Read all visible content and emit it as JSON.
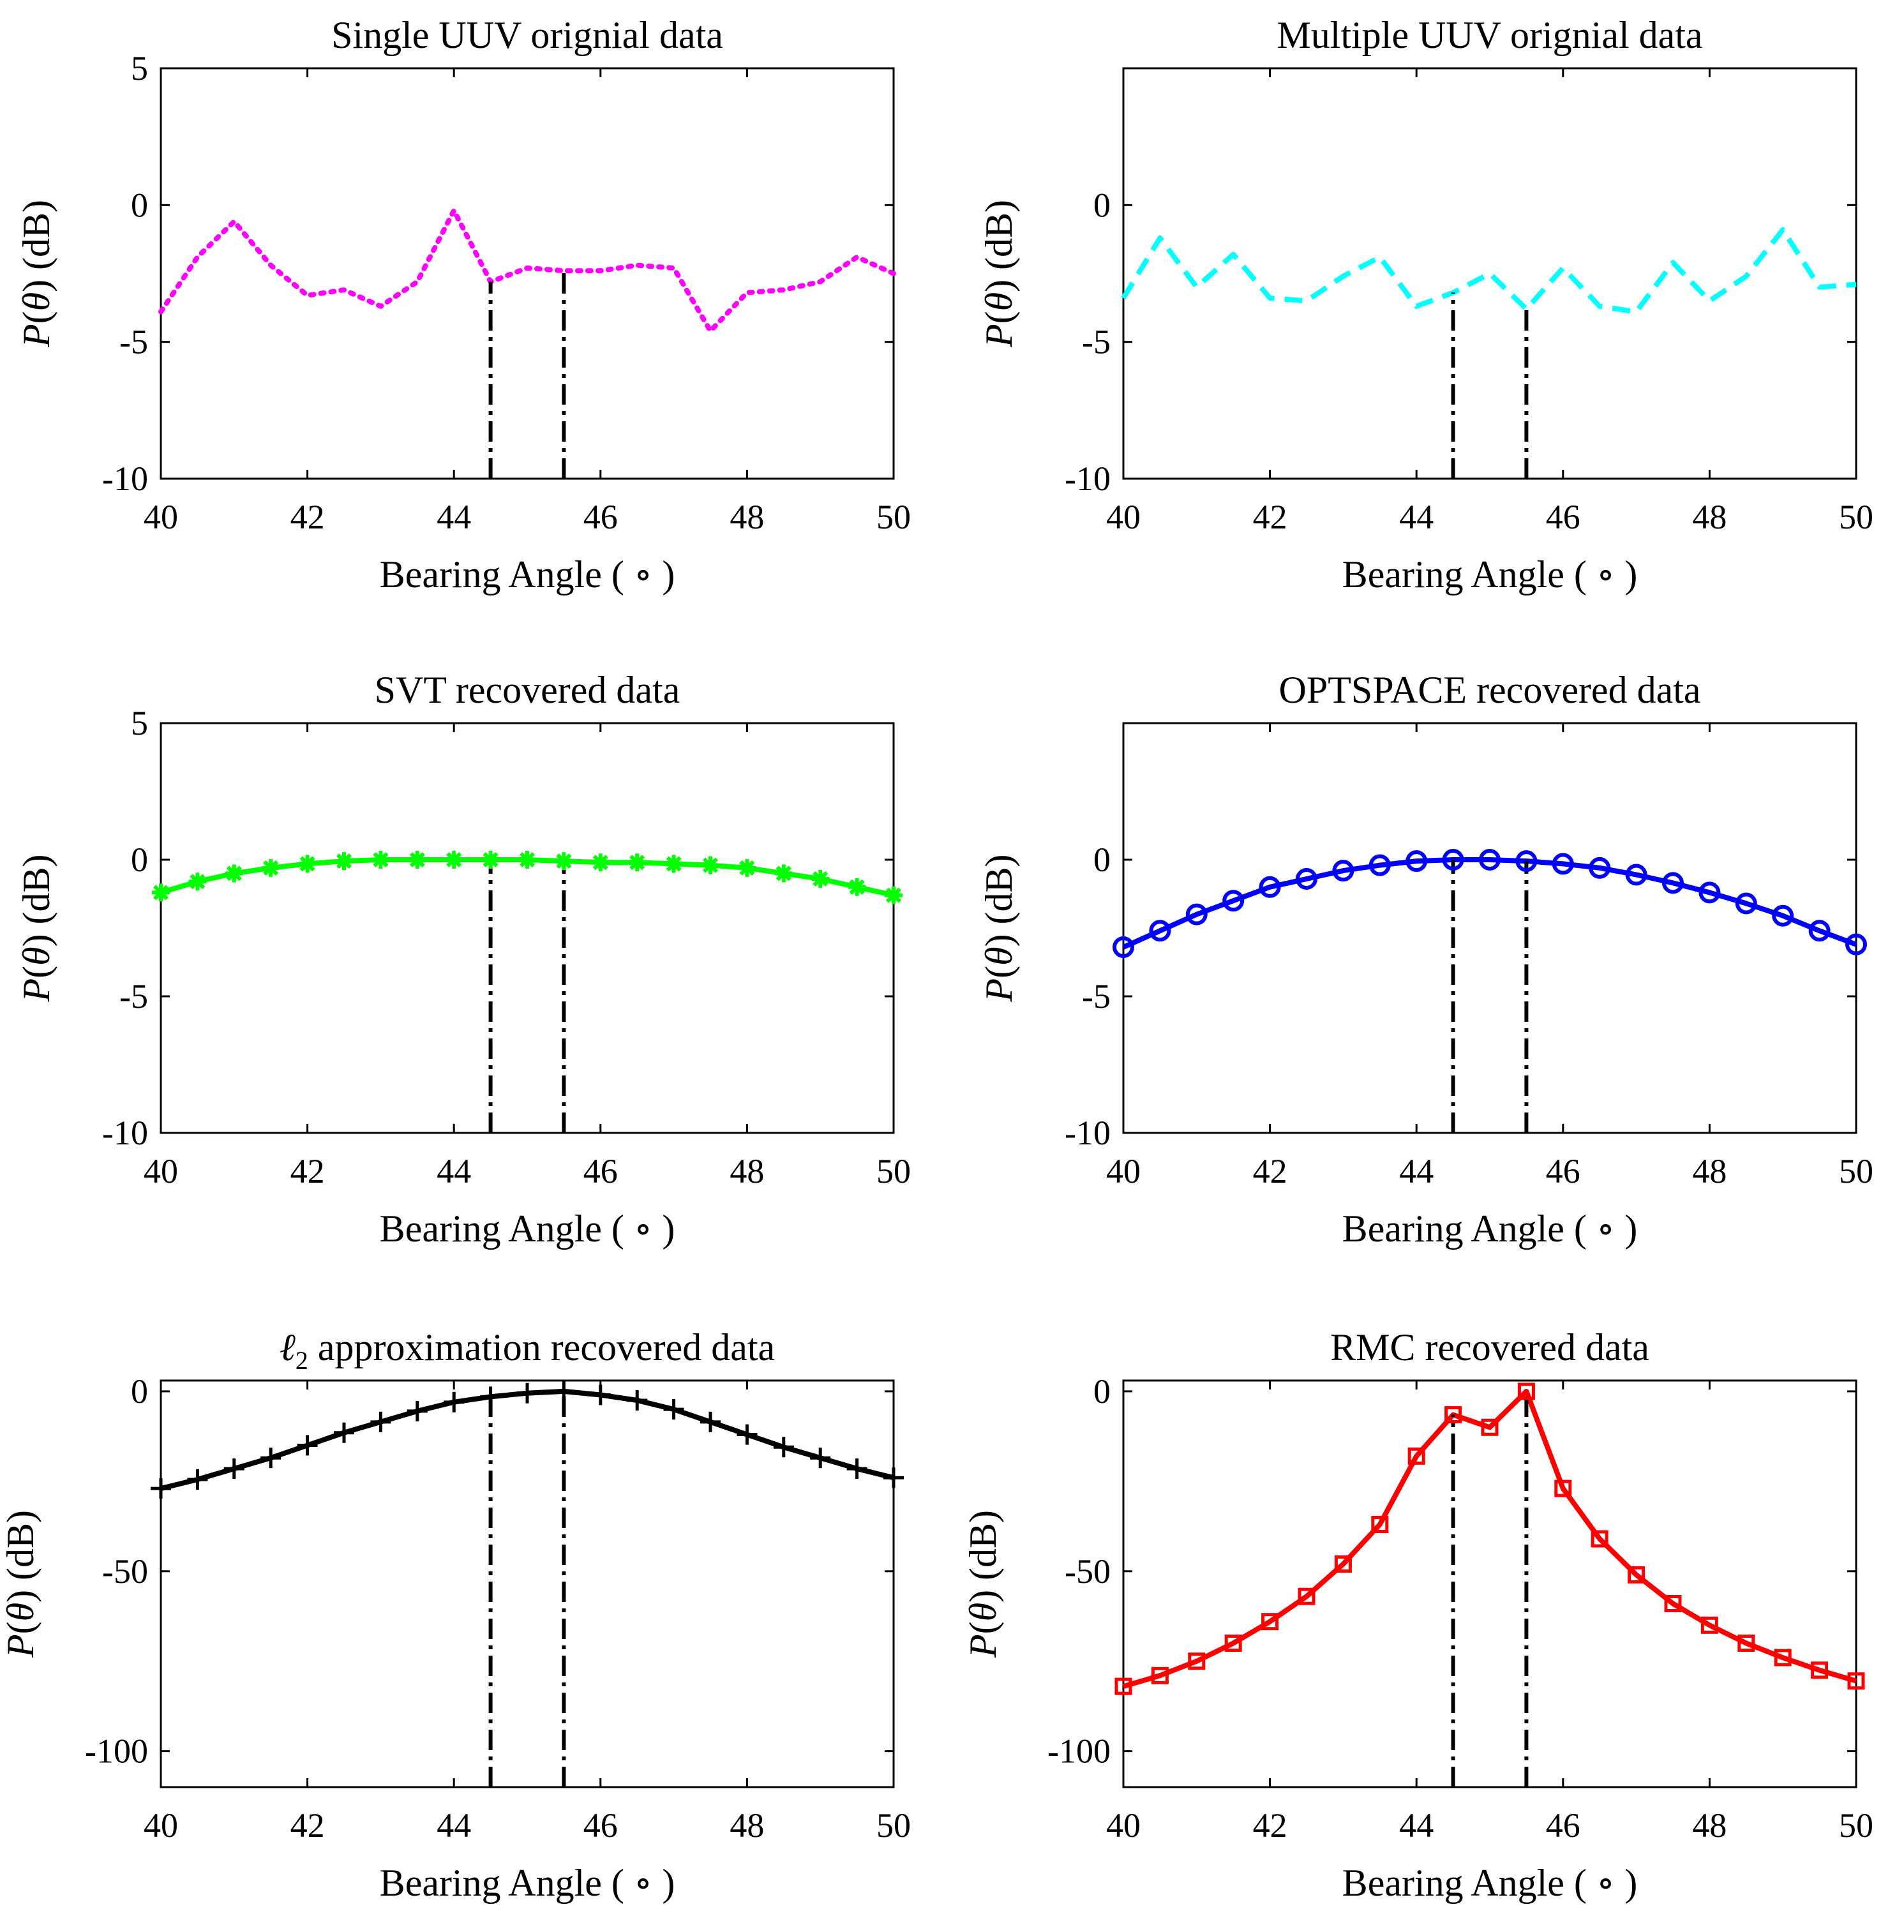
{
  "figure": {
    "x_unit_glyph": "∘",
    "y_symbol_p": "P",
    "y_symbol_theta": "θ",
    "y_unit": "(dB)"
  },
  "chart_data": [
    {
      "id": "single-uuv",
      "type": "line",
      "title": "Single UUV orignial data",
      "xlabel": "Bearing Angle ( ∘ )",
      "ylabel": "P(θ) (dB)",
      "xlim": [
        40,
        50
      ],
      "ylim": [
        -10,
        5
      ],
      "xticks": [
        40,
        42,
        44,
        46,
        48,
        50
      ],
      "xtick_labels": [
        "40",
        "42",
        "44",
        "46",
        "48",
        "50"
      ],
      "yticks": [
        -10,
        -5,
        0,
        5
      ],
      "ytick_labels": [
        "-10",
        "-5",
        "0",
        "5"
      ],
      "target_angles": [
        44.5,
        45.5
      ],
      "series": [
        {
          "name": "Single UUV",
          "color": "#ff00ff",
          "line_style": "dotted",
          "marker": "none",
          "x": [
            40,
            40.5,
            41,
            41.5,
            42,
            42.5,
            43,
            43.5,
            44,
            44.5,
            45,
            45.5,
            46,
            46.5,
            47,
            47.5,
            48,
            48.5,
            49,
            49.5,
            50
          ],
          "y": [
            -3.9,
            -1.9,
            -0.6,
            -2.2,
            -3.3,
            -3.1,
            -3.7,
            -2.8,
            -0.2,
            -2.8,
            -2.3,
            -2.4,
            -2.4,
            -2.2,
            -2.3,
            -4.6,
            -3.2,
            -3.1,
            -2.8,
            -1.9,
            -2.5
          ]
        }
      ]
    },
    {
      "id": "multiple-uuv",
      "type": "line",
      "title": "Multiple UUV orignial data",
      "xlabel": "Bearing Angle ( ∘ )",
      "ylabel": "P(θ) (dB)",
      "xlim": [
        40,
        50
      ],
      "ylim": [
        -10,
        5
      ],
      "xticks": [
        40,
        42,
        44,
        46,
        48,
        50
      ],
      "xtick_labels": [
        "40",
        "42",
        "44",
        "46",
        "48",
        "50"
      ],
      "yticks": [
        -10,
        -5,
        0
      ],
      "ytick_labels": [
        "-10",
        "-5",
        "0"
      ],
      "target_angles": [
        44.5,
        45.5
      ],
      "series": [
        {
          "name": "Multiple UUV",
          "color": "#00ffff",
          "line_style": "dashed",
          "marker": "none",
          "x": [
            40,
            40.5,
            41,
            41.5,
            42,
            42.5,
            43,
            43.5,
            44,
            44.5,
            45,
            45.5,
            46,
            46.5,
            47,
            47.5,
            48,
            48.5,
            49,
            49.5,
            50
          ],
          "y": [
            -3.4,
            -1.2,
            -3.0,
            -1.8,
            -3.4,
            -3.5,
            -2.6,
            -1.9,
            -3.7,
            -3.2,
            -2.5,
            -3.8,
            -2.3,
            -3.7,
            -3.9,
            -2.1,
            -3.5,
            -2.6,
            -0.9,
            -3.0,
            -2.9
          ]
        }
      ]
    },
    {
      "id": "svt",
      "type": "line",
      "title": "SVT recovered data",
      "xlabel": "Bearing Angle ( ∘ )",
      "ylabel": "P(θ) (dB)",
      "xlim": [
        40,
        50
      ],
      "ylim": [
        -10,
        5
      ],
      "xticks": [
        40,
        42,
        44,
        46,
        48,
        50
      ],
      "xtick_labels": [
        "40",
        "42",
        "44",
        "46",
        "48",
        "50"
      ],
      "yticks": [
        -10,
        -5,
        0,
        5
      ],
      "ytick_labels": [
        "-10",
        "-5",
        "0",
        "5"
      ],
      "target_angles": [
        44.5,
        45.5
      ],
      "series": [
        {
          "name": "SVT",
          "color": "#00ff00",
          "line_style": "solid",
          "marker": "asterisk",
          "x": [
            40,
            40.5,
            41,
            41.5,
            42,
            42.5,
            43,
            43.5,
            44,
            44.5,
            45,
            45.5,
            46,
            46.5,
            47,
            47.5,
            48,
            48.5,
            49,
            49.5,
            50
          ],
          "y": [
            -1.2,
            -0.8,
            -0.5,
            -0.3,
            -0.15,
            -0.05,
            0,
            0,
            0,
            0,
            0,
            -0.05,
            -0.1,
            -0.1,
            -0.15,
            -0.2,
            -0.3,
            -0.5,
            -0.7,
            -1.0,
            -1.3
          ]
        }
      ]
    },
    {
      "id": "optspace",
      "type": "line",
      "title": "OPTSPACE recovered data",
      "xlabel": "Bearing Angle ( ∘ )",
      "ylabel": "P(θ) (dB)",
      "xlim": [
        40,
        50
      ],
      "ylim": [
        -10,
        5
      ],
      "xticks": [
        40,
        42,
        44,
        46,
        48,
        50
      ],
      "xtick_labels": [
        "40",
        "42",
        "44",
        "46",
        "48",
        "50"
      ],
      "yticks": [
        -10,
        -5,
        0
      ],
      "ytick_labels": [
        "-10",
        "-5",
        "0"
      ],
      "target_angles": [
        44.5,
        45.5
      ],
      "series": [
        {
          "name": "OPTSPACE",
          "color": "#0000ff",
          "line_style": "solid",
          "marker": "circle",
          "x": [
            40,
            40.5,
            41,
            41.5,
            42,
            42.5,
            43,
            43.5,
            44,
            44.5,
            45,
            45.5,
            46,
            46.5,
            47,
            47.5,
            48,
            48.5,
            49,
            49.5,
            50
          ],
          "y": [
            -3.2,
            -2.6,
            -2.0,
            -1.5,
            -1.0,
            -0.7,
            -0.4,
            -0.2,
            -0.05,
            0,
            0,
            -0.05,
            -0.15,
            -0.3,
            -0.55,
            -0.85,
            -1.2,
            -1.6,
            -2.05,
            -2.6,
            -3.1
          ]
        }
      ]
    },
    {
      "id": "l2",
      "type": "line",
      "title_prefix": "ℓ",
      "title_sub": "2",
      "title": "approximation recovered data",
      "xlabel": "Bearing Angle ( ∘ )",
      "ylabel": "P(θ) (dB)",
      "xlim": [
        40,
        50
      ],
      "ylim": [
        -110,
        3
      ],
      "xticks": [
        40,
        42,
        44,
        46,
        48,
        50
      ],
      "xtick_labels": [
        "40",
        "42",
        "44",
        "46",
        "48",
        "50"
      ],
      "yticks": [
        -100,
        -50,
        0
      ],
      "ytick_labels": [
        "-100",
        "-50",
        "0"
      ],
      "target_angles": [
        44.5,
        45.5
      ],
      "series": [
        {
          "name": "l2 approximation",
          "color": "#000000",
          "line_style": "solid",
          "marker": "plus",
          "x": [
            40,
            40.5,
            41,
            41.5,
            42,
            42.5,
            43,
            43.5,
            44,
            44.5,
            45,
            45.5,
            46,
            46.5,
            47,
            47.5,
            48,
            48.5,
            49,
            49.5,
            50
          ],
          "y": [
            -27,
            -24.5,
            -21.5,
            -18.5,
            -15,
            -11.5,
            -8.5,
            -5.5,
            -3,
            -1.5,
            -0.5,
            0,
            -1,
            -2.5,
            -5,
            -8.5,
            -12,
            -15.5,
            -18.5,
            -21.5,
            -24
          ]
        }
      ]
    },
    {
      "id": "rmc",
      "type": "line",
      "title": "RMC recovered data",
      "xlabel": "Bearing Angle ( ∘ )",
      "ylabel": "P(θ) (dB)",
      "xlim": [
        40,
        50
      ],
      "ylim": [
        -110,
        3
      ],
      "xticks": [
        40,
        42,
        44,
        46,
        48,
        50
      ],
      "xtick_labels": [
        "40",
        "42",
        "44",
        "46",
        "48",
        "50"
      ],
      "yticks": [
        -100,
        -50,
        0
      ],
      "ytick_labels": [
        "-100",
        "-50",
        "0"
      ],
      "target_angles": [
        44.5,
        45.5
      ],
      "series": [
        {
          "name": "RMC",
          "color": "#ff0000",
          "line_style": "solid",
          "marker": "square",
          "x": [
            40,
            40.5,
            41,
            41.5,
            42,
            42.5,
            43,
            43.5,
            44,
            44.5,
            45,
            45.5,
            46,
            46.5,
            47,
            47.5,
            48,
            48.5,
            49,
            49.5,
            50
          ],
          "y": [
            -82,
            -79,
            -75,
            -70,
            -64,
            -57,
            -48,
            -37,
            -18,
            -6.5,
            -10,
            0,
            -27,
            -41,
            -51,
            -59,
            -65,
            -70,
            -74,
            -77.5,
            -80.5
          ]
        }
      ]
    }
  ]
}
